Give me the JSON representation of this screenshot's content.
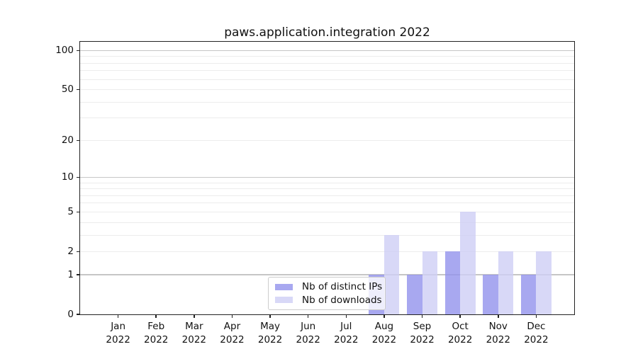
{
  "title": "paws.application.integration 2022",
  "chart_data": {
    "type": "bar",
    "title": "paws.application.integration 2022",
    "categories": [
      "Jan",
      "Feb",
      "Mar",
      "Apr",
      "May",
      "Jun",
      "Jul",
      "Aug",
      "Sep",
      "Oct",
      "Nov",
      "Dec"
    ],
    "category_year": "2022",
    "series": [
      {
        "name": "Nb of distinct IPs",
        "color": "#9292eccc",
        "values": [
          0,
          0,
          0,
          0,
          0,
          0,
          0,
          1,
          1,
          2,
          1,
          1
        ]
      },
      {
        "name": "Nb of downloads",
        "color": "#cecef5cc",
        "values": [
          0,
          0,
          0,
          0,
          0,
          0,
          0,
          3,
          2,
          5,
          2,
          2
        ]
      }
    ],
    "y_ticks": [
      0,
      1,
      2,
      5,
      10,
      20,
      50,
      100
    ],
    "major_gridlines": [
      1,
      10,
      100
    ],
    "minor_gridlines": [
      2,
      3,
      4,
      5,
      6,
      7,
      8,
      9,
      20,
      30,
      40,
      50,
      60,
      70,
      80,
      90
    ],
    "scale": "log1p",
    "ylim": [
      0,
      117
    ],
    "grid": true,
    "legend_position": "inside-bottom-center"
  },
  "colors": {
    "series_dark": "#9292eccc",
    "series_light": "#cecef5cc",
    "gridline_major": "#c6c6c6",
    "gridline_minor": "#ececec",
    "spine": "#222222",
    "text": "#111111",
    "legend_border": "#cccccc",
    "background": "#ffffff"
  }
}
